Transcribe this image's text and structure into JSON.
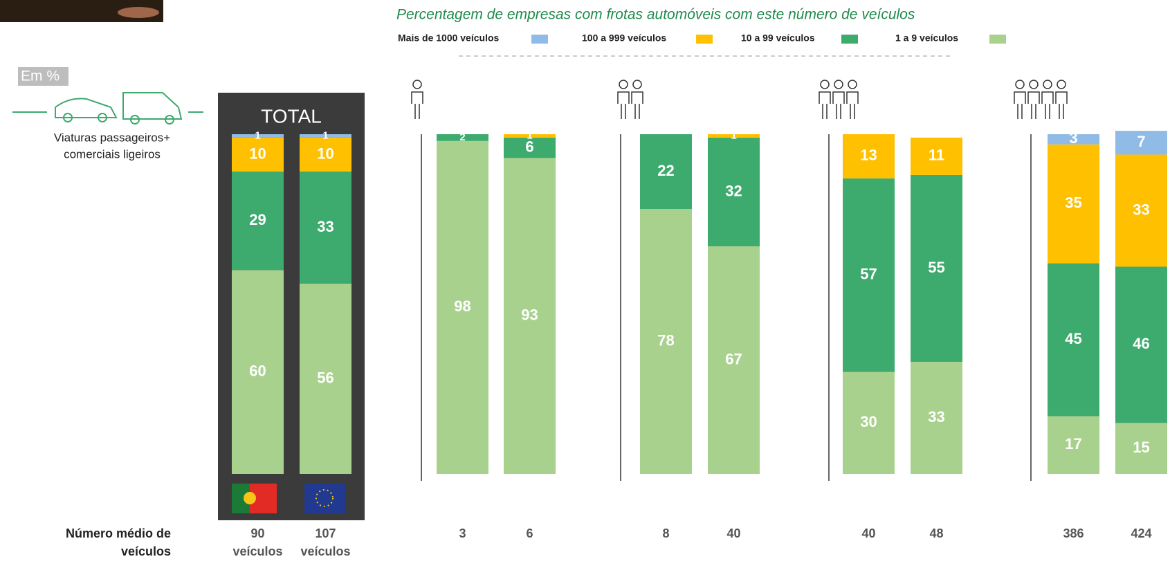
{
  "chart_data": {
    "type": "bar",
    "stacked": true,
    "title": "Percentagem de empresas com frotas automóveis com este número de veículos",
    "unit_note": "Em %",
    "vehicle_caption": [
      "Viaturas passageiros+",
      "comerciais ligeiros"
    ],
    "total_label": "TOTAL",
    "categories": [
      null,
      null,
      null,
      null,
      null,
      null,
      null,
      null,
      null,
      null
    ],
    "ylim": [
      0,
      100
    ],
    "series": [
      {
        "name": "Mais de 1000 veículos",
        "color": "#8fbbe6",
        "values": [
          1,
          1,
          null,
          null,
          null,
          null,
          null,
          null,
          3,
          7
        ]
      },
      {
        "name": "100 a 999 veículos",
        "color": "#ffc000",
        "values": [
          10,
          10,
          null,
          1,
          null,
          1,
          13,
          11,
          35,
          33
        ]
      },
      {
        "name": "10 a 99 veículos",
        "color": "#3daa6e",
        "values": [
          29,
          33,
          2,
          6,
          22,
          32,
          57,
          55,
          45,
          46
        ]
      },
      {
        "name": "1 a 9 veículos",
        "color": "#a9d18e",
        "values": [
          60,
          56,
          98,
          93,
          78,
          67,
          30,
          33,
          17,
          15
        ]
      }
    ],
    "average": {
      "label": [
        "Número médio de",
        "veículos"
      ],
      "unit": "veículos",
      "values": [
        90,
        107,
        3,
        6,
        8,
        40,
        40,
        48,
        386,
        424
      ]
    }
  }
}
